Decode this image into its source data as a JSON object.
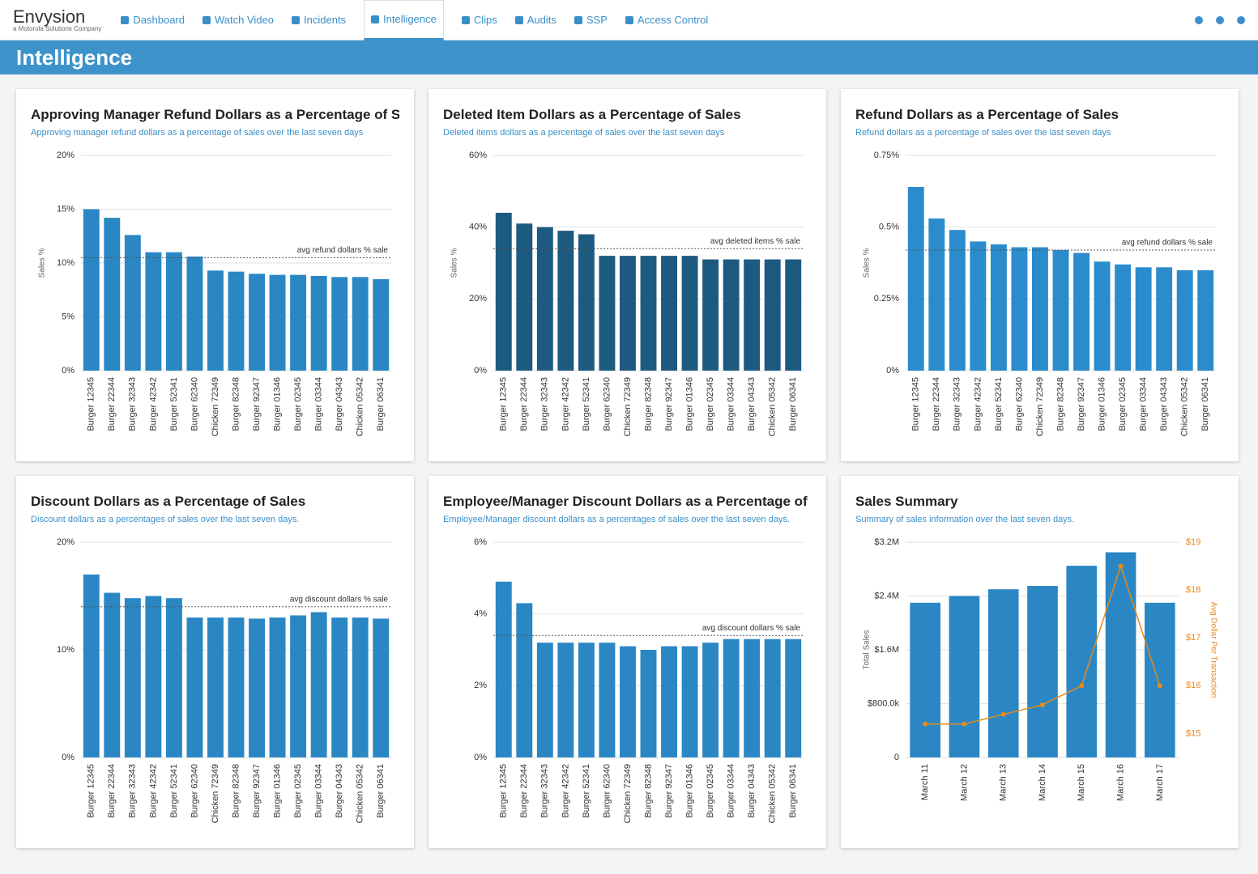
{
  "nav": {
    "logo": "Envysion",
    "logo_sub": "a Motorola Solutions Company",
    "items": [
      "Dashboard",
      "Watch Video",
      "Incidents",
      "Intelligence",
      "Clips",
      "Audits",
      "SSP",
      "Access Control"
    ]
  },
  "header": {
    "title": "Intelligence"
  },
  "chart_data": [
    {
      "type": "bar",
      "title": "Approving Manager Refund Dollars as a Percentage of Sales",
      "subtitle": "Approving manager refund dollars as a percentage of sales over the last seven days",
      "ylabel": "Sales %",
      "color": "#2a87c4",
      "categories": [
        "Burger 12345",
        "Burger 22344",
        "Burger 32343",
        "Burger 42342",
        "Burger 52341",
        "Burger 62340",
        "Chicken 72349",
        "Burger 82348",
        "Burger 92347",
        "Burger 01346",
        "Burger 02345",
        "Burger 03344",
        "Burger 04343",
        "Chicken 05342",
        "Burger 06341"
      ],
      "values": [
        15,
        14.2,
        12.6,
        11,
        11,
        10.6,
        9.3,
        9.2,
        9,
        8.9,
        8.9,
        8.8,
        8.7,
        8.7,
        8.5
      ],
      "average": {
        "value": 10.5,
        "label": "avg refund dollars % sale"
      },
      "ylim": [
        0,
        20
      ],
      "yticks": [
        {
          "value": 0,
          "label": "0%"
        },
        {
          "value": 5,
          "label": "5%"
        },
        {
          "value": 10,
          "label": "10%"
        },
        {
          "value": 15,
          "label": "15%"
        },
        {
          "value": 20,
          "label": "20%"
        }
      ]
    },
    {
      "type": "bar",
      "title": "Deleted Item Dollars as a Percentage of Sales",
      "subtitle": "Deleted items dollars as a percentage of sales over the last seven days",
      "ylabel": "Sales %",
      "color": "#1d5a80",
      "categories": [
        "Burger 12345",
        "Burger 22344",
        "Burger 32343",
        "Burger 42342",
        "Burger 52341",
        "Burger 62340",
        "Chicken 72349",
        "Burger 82348",
        "Burger 92347",
        "Burger 01346",
        "Burger 02345",
        "Burger 03344",
        "Burger 04343",
        "Chicken 05342",
        "Burger 06341"
      ],
      "values": [
        44,
        41,
        40,
        39,
        38,
        32,
        32,
        32,
        32,
        32,
        31,
        31,
        31,
        31,
        31
      ],
      "average": {
        "value": 34,
        "label": "avg deleted items % sale"
      },
      "ylim": [
        0,
        60
      ],
      "yticks": [
        {
          "value": 0,
          "label": "0%"
        },
        {
          "value": 20,
          "label": "20%"
        },
        {
          "value": 40,
          "label": "40%"
        },
        {
          "value": 60,
          "label": "60%"
        }
      ]
    },
    {
      "type": "bar",
      "title": "Refund Dollars as a Percentage of Sales",
      "subtitle": "Refund dollars as a percentage of sales over the last seven days",
      "ylabel": "Sales %",
      "color": "#2a8ccc",
      "categories": [
        "Burger 12345",
        "Burger 22344",
        "Burger 32343",
        "Burger 42342",
        "Burger 52341",
        "Burger 62340",
        "Chicken 72349",
        "Burger 82348",
        "Burger 92347",
        "Burger 01346",
        "Burger 02345",
        "Burger 03344",
        "Burger 04343",
        "Chicken 05342",
        "Burger 06341"
      ],
      "values": [
        0.64,
        0.53,
        0.49,
        0.45,
        0.44,
        0.43,
        0.43,
        0.42,
        0.41,
        0.38,
        0.37,
        0.36,
        0.36,
        0.35,
        0.35
      ],
      "average": {
        "value": 0.42,
        "label": "avg refund dollars % sale"
      },
      "ylim": [
        0,
        0.75
      ],
      "yticks": [
        {
          "value": 0,
          "label": "0%"
        },
        {
          "value": 0.25,
          "label": "0.25%"
        },
        {
          "value": 0.5,
          "label": "0.5%"
        },
        {
          "value": 0.75,
          "label": "0.75%"
        }
      ]
    },
    {
      "type": "bar",
      "title": "Discount Dollars as a Percentage of Sales",
      "subtitle": "Discount dollars as a percentages of sales over the last seven days.",
      "color": "#2a87c4",
      "categories": [
        "Burger 12345",
        "Burger 22344",
        "Burger 32343",
        "Burger 42342",
        "Burger 52341",
        "Burger 62340",
        "Chicken 72349",
        "Burger 82348",
        "Burger 92347",
        "Burger 01346",
        "Burger 02345",
        "Burger 03344",
        "Burger 04343",
        "Chicken 05342",
        "Burger 06341"
      ],
      "values": [
        17,
        15.3,
        14.8,
        15,
        14.8,
        13,
        13,
        13,
        12.9,
        13,
        13.2,
        13.5,
        13,
        13,
        12.9
      ],
      "average": {
        "value": 14,
        "label": "avg discount dollars % sale"
      },
      "ylim": [
        0,
        20
      ],
      "yticks": [
        {
          "value": 0,
          "label": "0%"
        },
        {
          "value": 10,
          "label": "10%"
        },
        {
          "value": 20,
          "label": "20%"
        }
      ]
    },
    {
      "type": "bar",
      "title": "Employee/Manager Discount Dollars as a Percentage of Sales",
      "subtitle": "Employee/Manager discount dollars as a percentages of sales over the last seven days.",
      "color": "#2a87c4",
      "categories": [
        "Burger 12345",
        "Burger 22344",
        "Burger 32343",
        "Burger 42342",
        "Burger 52341",
        "Burger 62340",
        "Chicken 72349",
        "Burger 82348",
        "Burger 92347",
        "Burger 01346",
        "Burger 02345",
        "Burger 03344",
        "Burger 04343",
        "Chicken 05342",
        "Burger 06341"
      ],
      "values": [
        4.9,
        4.3,
        3.2,
        3.2,
        3.2,
        3.2,
        3.1,
        3,
        3.1,
        3.1,
        3.2,
        3.3,
        3.3,
        3.3,
        3.3
      ],
      "average": {
        "value": 3.4,
        "label": "avg discount dollars % sale"
      },
      "ylim": [
        0,
        6
      ],
      "yticks": [
        {
          "value": 0,
          "label": "0%"
        },
        {
          "value": 2,
          "label": "2%"
        },
        {
          "value": 4,
          "label": "4%"
        },
        {
          "value": 6,
          "label": "6%"
        }
      ]
    },
    {
      "type": "combo",
      "title": "Sales Summary",
      "subtitle": "Summary of sales information over the last seven days.",
      "ylabel": "Total Sales",
      "y2label": "Avg Dollar Per Transaction",
      "categories": [
        "March 11",
        "March 12",
        "March 13",
        "March 14",
        "March 15",
        "March 16",
        "March 17"
      ],
      "series": [
        {
          "color": "#2a87c4",
          "values": [
            2300000,
            2400000,
            2500000,
            2550000,
            2850000,
            3050000,
            2300000
          ]
        },
        {
          "color": "#e8891b",
          "axis": "y2",
          "values": [
            15.2,
            15.2,
            15.4,
            15.6,
            16,
            18.5,
            16
          ]
        }
      ],
      "ylim": [
        0,
        3200000
      ],
      "yticks": [
        0,
        {
          "value": 800000,
          "label": "$800.0k"
        },
        {
          "value": 1600000,
          "label": "$1.6M"
        },
        {
          "value": 2400000,
          "label": "$2.4M"
        },
        {
          "value": 3200000,
          "label": "$3.2M"
        }
      ],
      "y2lim": [
        14.5,
        19
      ],
      "y2ticks": [
        {
          "value": 15,
          "label": "$15"
        },
        {
          "value": 16,
          "label": "$16"
        },
        {
          "value": 17,
          "label": "$17"
        },
        {
          "value": 18,
          "label": "$18"
        },
        {
          "value": 19,
          "label": "$19"
        }
      ]
    }
  ]
}
